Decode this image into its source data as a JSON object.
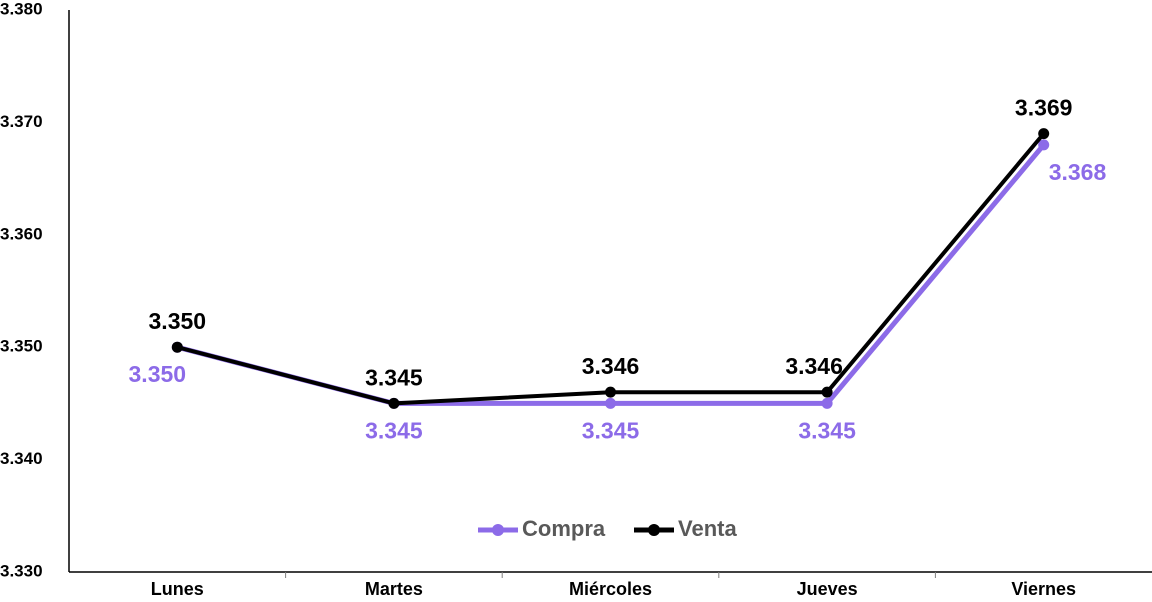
{
  "chart_data": {
    "type": "line",
    "categories": [
      "Lunes",
      "Martes",
      "Miércoles",
      "Jueves",
      "Viernes"
    ],
    "series": [
      {
        "name": "Compra",
        "values": [
          3350,
          3345,
          3345,
          3345,
          3368
        ],
        "labels": [
          "3.350",
          "3.345",
          "3.345",
          "3.345",
          "3.368"
        ],
        "color": "#8C6BE8"
      },
      {
        "name": "Venta",
        "values": [
          3350,
          3345,
          3346,
          3346,
          3369
        ],
        "labels": [
          "3.350",
          "3.345",
          "3.346",
          "3.346",
          "3.369"
        ],
        "color": "#000000"
      }
    ],
    "ylim": [
      3330,
      3380
    ],
    "yticks": [
      3330,
      3340,
      3350,
      3360,
      3370,
      3380
    ],
    "ytick_labels": [
      "3.330",
      "3.340",
      "3.350",
      "3.360",
      "3.370",
      "3.380"
    ],
    "grid": false,
    "legend": "bottom-center"
  }
}
